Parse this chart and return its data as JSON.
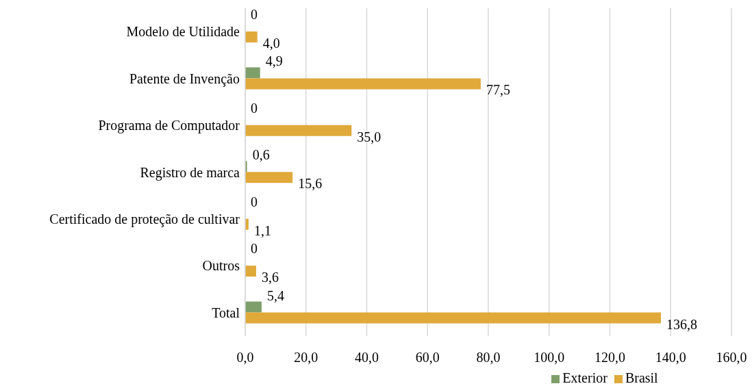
{
  "chart_data": {
    "type": "bar",
    "orientation": "horizontal",
    "categories": [
      "Modelo de Utilidade",
      "Patente de Invenção",
      "Programa de Computador",
      "Registro de marca",
      "Certificado de proteção de cultivar",
      "Outros",
      "Total"
    ],
    "series": [
      {
        "name": "Exterior",
        "color": "#7f9f6a",
        "values": [
          0,
          4.9,
          0,
          0.6,
          0,
          0,
          5.4
        ],
        "value_labels": [
          "0",
          "4,9",
          "0",
          "0,6",
          "0",
          "0",
          "5,4"
        ]
      },
      {
        "name": "Brasil",
        "color": "#e0a93a",
        "values": [
          4.0,
          77.5,
          35.0,
          15.6,
          1.1,
          3.6,
          136.8
        ],
        "value_labels": [
          "4,0",
          "77,5",
          "35,0",
          "15,6",
          "1,1",
          "3,6",
          "136,8"
        ]
      }
    ],
    "xlim": [
      0,
      160
    ],
    "xticks": [
      {
        "value": 0,
        "label": "0,0"
      },
      {
        "value": 20,
        "label": "20,0"
      },
      {
        "value": 40,
        "label": "40,0"
      },
      {
        "value": 60,
        "label": "60,0"
      },
      {
        "value": 80,
        "label": "80,0"
      },
      {
        "value": 100,
        "label": "100,0"
      },
      {
        "value": 120,
        "label": "120,0"
      },
      {
        "value": 140,
        "label": "140,0"
      },
      {
        "value": 160,
        "label": "160,0"
      }
    ],
    "grid": "x",
    "legend": "bottom"
  }
}
